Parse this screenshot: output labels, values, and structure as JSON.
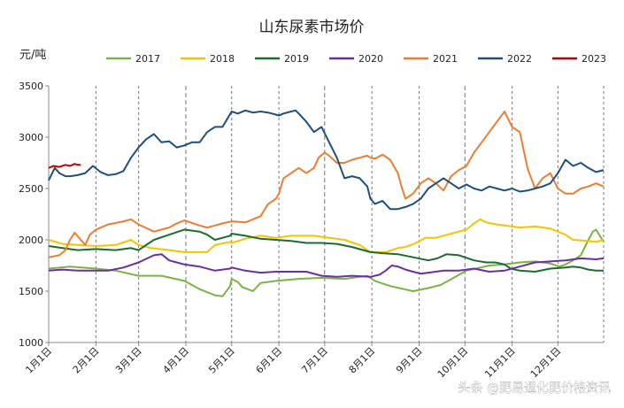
{
  "chart_data": {
    "type": "line",
    "title": "山东尿素市场价",
    "ylabel": "元/吨",
    "ylim": [
      1000,
      3500
    ],
    "yticks": [
      1000,
      1500,
      2000,
      2500,
      3000,
      3500
    ],
    "xticks": [
      "1月1日",
      "2月1日",
      "3月1日",
      "4月1日",
      "5月1日",
      "6月1日",
      "7月1日",
      "8月1日",
      "9月1日",
      "10月1日",
      "11月1日",
      "12月1日"
    ],
    "dashed_month_separators": true,
    "legend_position": "top",
    "watermark": "头条 @肥易通化肥价格资讯",
    "series": [
      {
        "name": "2017",
        "color": "#7cb342",
        "x": [
          1,
          15,
          32,
          45,
          60,
          75,
          90,
          95,
          100,
          105,
          110,
          115,
          120,
          121,
          125,
          128,
          135,
          140,
          150,
          165,
          180,
          195,
          210,
          215,
          225,
          240,
          250,
          258,
          263,
          275,
          290,
          300,
          310,
          320,
          330,
          336,
          340,
          345,
          350,
          355,
          358,
          360,
          365
        ],
        "y": [
          1720,
          1740,
          1720,
          1700,
          1650,
          1650,
          1600,
          1560,
          1520,
          1490,
          1460,
          1450,
          1550,
          1620,
          1590,
          1540,
          1500,
          1580,
          1600,
          1620,
          1630,
          1620,
          1650,
          1600,
          1550,
          1500,
          1530,
          1560,
          1600,
          1700,
          1750,
          1760,
          1780,
          1790,
          1770,
          1740,
          1760,
          1800,
          1850,
          2000,
          2080,
          2100,
          1980
        ]
      },
      {
        "name": "2018",
        "color": "#f5c400",
        "x": [
          1,
          10,
          20,
          32,
          45,
          55,
          60,
          68,
          80,
          90,
          105,
          110,
          120,
          121,
          130,
          140,
          150,
          160,
          175,
          185,
          195,
          205,
          212,
          222,
          230,
          235,
          242,
          248,
          255,
          265,
          275,
          280,
          284,
          288,
          295,
          305,
          310,
          320,
          330,
          340,
          345,
          355,
          360,
          365
        ],
        "y": [
          2000,
          1960,
          1950,
          1940,
          1950,
          2000,
          1950,
          1920,
          1900,
          1880,
          1880,
          1950,
          1980,
          1970,
          2010,
          2040,
          2020,
          2040,
          2040,
          2020,
          2000,
          1950,
          1880,
          1880,
          1920,
          1930,
          1970,
          2020,
          2020,
          2060,
          2100,
          2160,
          2200,
          2170,
          2150,
          2130,
          2120,
          2130,
          2110,
          2050,
          2000,
          1990,
          1980,
          2000
        ]
      },
      {
        "name": "2019",
        "color": "#1e6b30",
        "x": [
          1,
          10,
          20,
          32,
          45,
          55,
          60,
          70,
          80,
          90,
          95,
          100,
          105,
          110,
          120,
          121,
          130,
          140,
          150,
          160,
          170,
          180,
          190,
          200,
          212,
          220,
          230,
          240,
          250,
          256,
          262,
          270,
          280,
          288,
          294,
          300,
          304,
          310,
          320,
          330,
          340,
          345,
          350,
          355,
          360,
          365
        ],
        "y": [
          1940,
          1920,
          1900,
          1910,
          1900,
          1920,
          1900,
          2000,
          2050,
          2100,
          2090,
          2080,
          2050,
          2000,
          2040,
          2060,
          2040,
          2010,
          2000,
          1990,
          1970,
          1970,
          1960,
          1930,
          1880,
          1870,
          1860,
          1830,
          1800,
          1820,
          1860,
          1850,
          1800,
          1780,
          1780,
          1760,
          1720,
          1700,
          1690,
          1720,
          1730,
          1740,
          1730,
          1710,
          1700,
          1700
        ]
      },
      {
        "name": "2020",
        "color": "#6a2fa5",
        "x": [
          1,
          10,
          20,
          32,
          40,
          50,
          60,
          70,
          75,
          80,
          85,
          90,
          100,
          110,
          120,
          121,
          130,
          135,
          140,
          150,
          160,
          170,
          180,
          190,
          200,
          212,
          218,
          222,
          226,
          230,
          235,
          240,
          245,
          250,
          255,
          260,
          270,
          280,
          290,
          300,
          310,
          320,
          330,
          340,
          350,
          360,
          365
        ],
        "y": [
          1700,
          1710,
          1700,
          1700,
          1700,
          1730,
          1780,
          1850,
          1860,
          1800,
          1780,
          1760,
          1740,
          1700,
          1720,
          1730,
          1700,
          1690,
          1680,
          1690,
          1690,
          1690,
          1650,
          1640,
          1650,
          1640,
          1660,
          1700,
          1750,
          1740,
          1710,
          1690,
          1670,
          1680,
          1690,
          1700,
          1700,
          1720,
          1690,
          1700,
          1740,
          1780,
          1790,
          1800,
          1820,
          1810,
          1820
        ]
      },
      {
        "name": "2021",
        "color": "#ed7d31",
        "x": [
          1,
          8,
          12,
          15,
          18,
          22,
          25,
          28,
          32,
          40,
          50,
          55,
          60,
          70,
          80,
          85,
          90,
          100,
          105,
          110,
          115,
          121,
          130,
          135,
          140,
          145,
          150,
          152,
          155,
          160,
          165,
          170,
          175,
          178,
          182,
          185,
          190,
          195,
          200,
          205,
          210,
          212,
          215,
          220,
          225,
          230,
          232,
          235,
          240,
          245,
          250,
          255,
          260,
          265,
          270,
          275,
          280,
          285,
          290,
          295,
          300,
          305,
          310,
          315,
          320,
          325,
          330,
          335,
          340,
          345,
          350,
          355,
          360,
          365
        ],
        "y": [
          1830,
          1850,
          1900,
          2000,
          2070,
          2000,
          1950,
          2050,
          2100,
          2150,
          2180,
          2200,
          2150,
          2080,
          2120,
          2160,
          2190,
          2140,
          2120,
          2140,
          2160,
          2180,
          2170,
          2200,
          2230,
          2350,
          2400,
          2450,
          2600,
          2650,
          2700,
          2650,
          2700,
          2800,
          2850,
          2820,
          2750,
          2750,
          2780,
          2800,
          2820,
          2800,
          2790,
          2830,
          2780,
          2650,
          2540,
          2400,
          2450,
          2550,
          2600,
          2550,
          2480,
          2620,
          2680,
          2720,
          2850,
          2950,
          3050,
          3150,
          3250,
          3100,
          3050,
          2700,
          2500,
          2600,
          2650,
          2500,
          2450,
          2450,
          2500,
          2520,
          2550,
          2520
        ]
      },
      {
        "name": "2022",
        "color": "#1f4e79",
        "x": [
          1,
          5,
          8,
          12,
          15,
          20,
          25,
          30,
          35,
          40,
          45,
          50,
          55,
          60,
          65,
          70,
          75,
          80,
          85,
          90,
          95,
          100,
          105,
          110,
          115,
          121,
          125,
          130,
          135,
          140,
          145,
          150,
          152,
          155,
          160,
          163,
          165,
          170,
          175,
          180,
          185,
          190,
          195,
          200,
          205,
          210,
          212,
          215,
          220,
          225,
          230,
          235,
          240,
          245,
          250,
          255,
          260,
          265,
          270,
          275,
          280,
          285,
          290,
          295,
          300,
          305,
          310,
          315,
          320,
          325,
          330,
          335,
          340,
          345,
          350,
          355,
          360,
          365
        ],
        "y": [
          2580,
          2700,
          2650,
          2620,
          2620,
          2630,
          2650,
          2720,
          2660,
          2630,
          2640,
          2670,
          2800,
          2900,
          2980,
          3030,
          2950,
          2960,
          2900,
          2920,
          2950,
          2950,
          3050,
          3100,
          3100,
          3250,
          3230,
          3260,
          3240,
          3250,
          3240,
          3220,
          3210,
          3230,
          3250,
          3260,
          3230,
          3150,
          3050,
          3100,
          2950,
          2800,
          2600,
          2620,
          2600,
          2520,
          2400,
          2350,
          2380,
          2300,
          2300,
          2320,
          2350,
          2400,
          2500,
          2550,
          2600,
          2550,
          2500,
          2540,
          2500,
          2480,
          2520,
          2500,
          2480,
          2500,
          2470,
          2480,
          2500,
          2520,
          2550,
          2650,
          2780,
          2720,
          2750,
          2700,
          2660,
          2680
        ]
      },
      {
        "name": "2023",
        "color": "#c00000",
        "x": [
          1,
          4,
          8,
          12,
          15,
          18,
          20,
          22
        ],
        "y": [
          2700,
          2720,
          2710,
          2730,
          2720,
          2740,
          2730,
          2730
        ]
      }
    ]
  }
}
